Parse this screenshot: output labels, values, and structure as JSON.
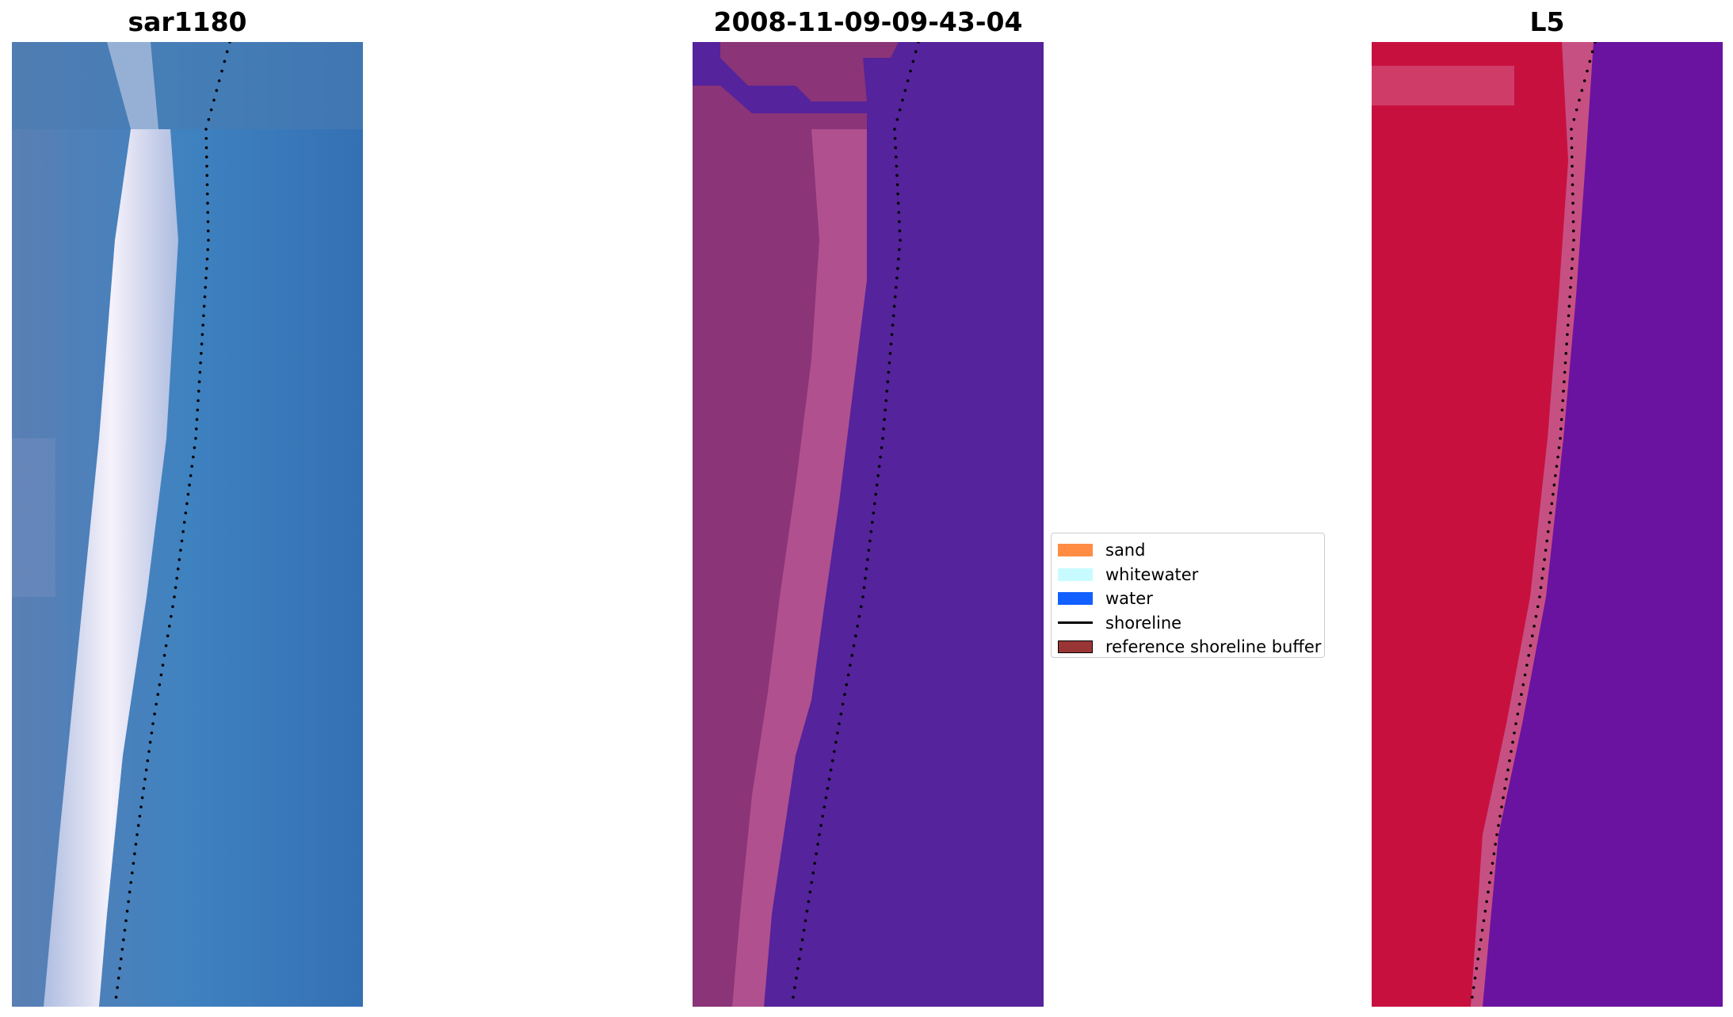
{
  "panels": [
    {
      "id": "left",
      "title": "sar1180"
    },
    {
      "id": "middle",
      "title": "2008-11-09-09-43-04"
    },
    {
      "id": "right",
      "title": "L5"
    }
  ],
  "legend": [
    {
      "label": "sand",
      "kind": "patch",
      "color": "#ff8c42"
    },
    {
      "label": "whitewater",
      "kind": "patch",
      "color": "#c8fbff"
    },
    {
      "label": "water",
      "kind": "patch",
      "color": "#1160ff"
    },
    {
      "label": "shoreline",
      "kind": "line",
      "color": "#000000"
    },
    {
      "label": "reference shoreline buffer",
      "kind": "patch",
      "color": "#9a3535"
    }
  ],
  "colors": {
    "left_water": "#3c74b4",
    "left_surf": "#f2eef8",
    "mid_water": "#55239b",
    "mid_beach": "#b0508e",
    "right_water": "#6a13a0",
    "right_land": "#c8103e"
  }
}
